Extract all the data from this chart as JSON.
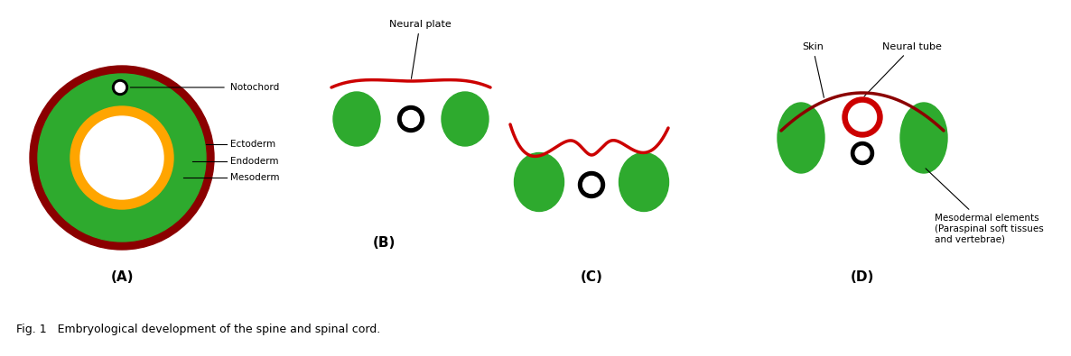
{
  "bg_color": "#ffffff",
  "green_color": "#2eaa2e",
  "dark_red_color": "#8b0000",
  "red_color": "#cc0000",
  "orange_color": "#ffa500",
  "black_color": "#000000",
  "fig_caption": "Fig. 1   Embryological development of the spine and spinal cord.",
  "label_A": "(A)",
  "label_B": "(B)",
  "label_C": "(C)",
  "label_D": "(D)",
  "ann_notochord": "Notochord",
  "ann_ectoderm": "Ectoderm",
  "ann_endoderm": "Endoderm",
  "ann_mesoderm": "Mesoderm",
  "ann_neural_plate": "Neural plate",
  "ann_skin": "Skin",
  "ann_neural_tube": "Neural tube",
  "ann_mesodermal": "Mesodermal elements\n(Paraspinal soft tissues\nand vertebrae)"
}
